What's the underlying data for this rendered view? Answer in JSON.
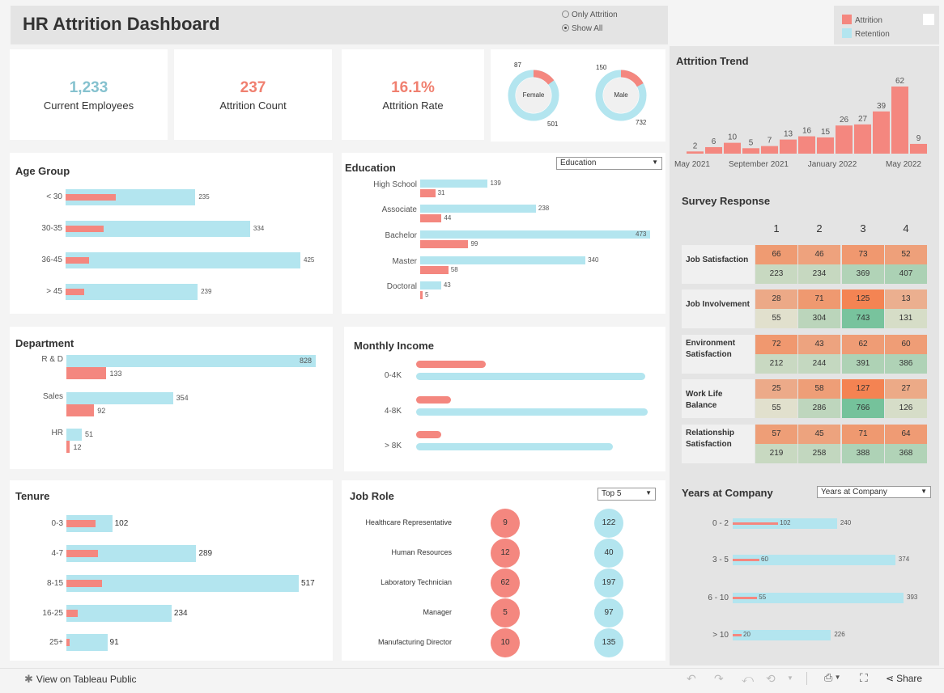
{
  "header": {
    "title": "HR Attrition Dashboard",
    "filter_options": [
      "Only Attrition",
      "Show All"
    ],
    "selected_filter": "Show All",
    "legend": [
      {
        "name": "Attrition",
        "color": "#f4877f"
      },
      {
        "name": "Retention",
        "color": "#b3e5ef"
      }
    ]
  },
  "kpis": {
    "employees": {
      "value": "1,233",
      "label": "Current Employees",
      "color": "#86c2cf"
    },
    "attrition_count": {
      "value": "237",
      "label": "Attrition Count",
      "color": "#f08070"
    },
    "attrition_rate": {
      "value": "16.1%",
      "label": "Attrition Rate",
      "color": "#f08070"
    }
  },
  "gender": {
    "female": {
      "label": "Female",
      "attrition": "87",
      "retention": "501"
    },
    "male": {
      "label": "Male",
      "attrition": "150",
      "retention": "732"
    }
  },
  "age_group": {
    "title": "Age Group"
  },
  "education": {
    "title": "Education",
    "dropdown": "Education"
  },
  "department": {
    "title": "Department"
  },
  "monthly_income": {
    "title": "Monthly Income"
  },
  "tenure": {
    "title": "Tenure"
  },
  "job_role": {
    "title": "Job Role",
    "dropdown": "Top 5"
  },
  "attrition_trend": {
    "title": "Attrition Trend",
    "xticks": [
      "May 2021",
      "September 2021",
      "January 2022",
      "May 2022"
    ]
  },
  "survey": {
    "title": "Survey Response",
    "columns": [
      "1",
      "2",
      "3",
      "4"
    ]
  },
  "years_at_company": {
    "title": "Years at Company",
    "dropdown": "Years at Company"
  },
  "footer": {
    "view_link": "View on Tableau Public",
    "share": "Share"
  },
  "chart_data": [
    {
      "type": "bar",
      "title": "Age Group",
      "categories": [
        "< 30",
        "30-35",
        "36-45",
        "> 45"
      ],
      "series": [
        {
          "name": "Retention",
          "values": [
            235,
            334,
            425,
            239
          ]
        },
        {
          "name": "Attrition",
          "values": [
            91,
            69,
            43,
            34
          ]
        }
      ]
    },
    {
      "type": "bar",
      "title": "Education",
      "categories": [
        "High School",
        "Associate",
        "Bachelor",
        "Master",
        "Doctoral"
      ],
      "series": [
        {
          "name": "Retention",
          "values": [
            139,
            238,
            473,
            340,
            43
          ]
        },
        {
          "name": "Attrition",
          "values": [
            31,
            44,
            99,
            58,
            5
          ]
        }
      ]
    },
    {
      "type": "bar",
      "title": "Department",
      "categories": [
        "R & D",
        "Sales",
        "HR"
      ],
      "series": [
        {
          "name": "Retention",
          "values": [
            828,
            354,
            51
          ]
        },
        {
          "name": "Attrition",
          "values": [
            133,
            92,
            12
          ]
        }
      ]
    },
    {
      "type": "bar",
      "title": "Monthly Income",
      "categories": [
        "0-4K",
        "4-8K",
        "> 8K"
      ],
      "series": [
        {
          "name": "Attrition",
          "values": [
            0.36,
            0.18,
            0.13
          ]
        },
        {
          "name": "Retention",
          "values": [
            0.99,
            1.0,
            0.85
          ]
        }
      ]
    },
    {
      "type": "bar",
      "title": "Tenure",
      "categories": [
        "0-3",
        "4-7",
        "8-15",
        "16-25",
        "25+"
      ],
      "series": [
        {
          "name": "Retention",
          "values": [
            102,
            289,
            517,
            234,
            91
          ]
        },
        {
          "name": "Attrition",
          "values": [
            66,
            71,
            80,
            25,
            7
          ]
        }
      ]
    },
    {
      "type": "scatter",
      "title": "Job Role",
      "categories": [
        "Healthcare Representative",
        "Human Resources",
        "Laboratory Technician",
        "Manager",
        "Manufacturing Director"
      ],
      "series": [
        {
          "name": "Attrition",
          "values": [
            9,
            12,
            62,
            5,
            10
          ]
        },
        {
          "name": "Retention",
          "values": [
            122,
            40,
            197,
            97,
            135
          ]
        }
      ]
    },
    {
      "type": "bar",
      "title": "Attrition Trend",
      "values": [
        2,
        6,
        10,
        5,
        7,
        13,
        16,
        15,
        26,
        27,
        39,
        62,
        9
      ],
      "xticks": [
        "May 2021",
        "September 2021",
        "January 2022",
        "May 2022"
      ]
    },
    {
      "type": "heatmap",
      "title": "Survey Response",
      "columns": [
        "1",
        "2",
        "3",
        "4"
      ],
      "rows": [
        {
          "label": "Job Satisfaction",
          "attrition": [
            66,
            46,
            73,
            52
          ],
          "retention": [
            223,
            234,
            369,
            407
          ]
        },
        {
          "label": "Job Involvement",
          "attrition": [
            28,
            71,
            125,
            13
          ],
          "retention": [
            55,
            304,
            743,
            131
          ]
        },
        {
          "label": "Environment Satisfaction",
          "attrition": [
            72,
            43,
            62,
            60
          ],
          "retention": [
            212,
            244,
            391,
            386
          ]
        },
        {
          "label": "Work Life Balance",
          "attrition": [
            25,
            58,
            127,
            27
          ],
          "retention": [
            55,
            286,
            766,
            126
          ]
        },
        {
          "label": "Relationship Satisfaction",
          "attrition": [
            57,
            45,
            71,
            64
          ],
          "retention": [
            219,
            258,
            388,
            368
          ]
        }
      ]
    },
    {
      "type": "bar",
      "title": "Years at Company",
      "categories": [
        "0 - 2",
        "3 - 5",
        "6 - 10",
        "> 10"
      ],
      "series": [
        {
          "name": "Retention",
          "values": [
            240,
            374,
            393,
            226
          ]
        },
        {
          "name": "Attrition",
          "values": [
            102,
            60,
            55,
            20
          ]
        }
      ]
    }
  ]
}
